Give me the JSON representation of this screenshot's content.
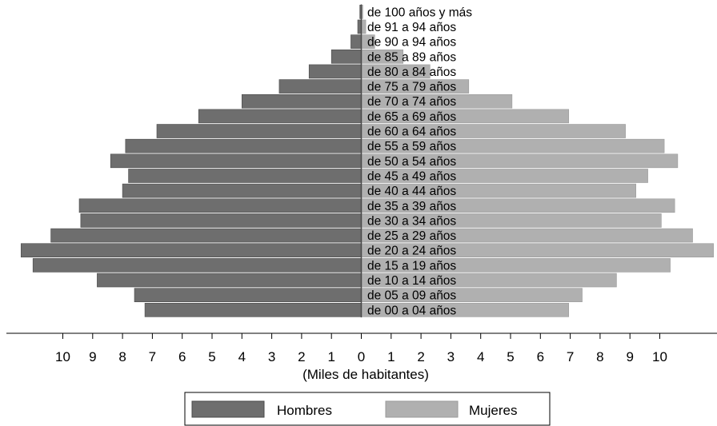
{
  "chart_data": {
    "type": "bar",
    "orientation": "horizontal",
    "subtype": "population-pyramid",
    "xlabel": "(Miles de habitantes)",
    "xlim": [
      -11.5,
      11.5
    ],
    "xticks": [
      -10,
      -9,
      -8,
      -7,
      -6,
      -5,
      -4,
      -3,
      -2,
      -1,
      0,
      1,
      2,
      3,
      4,
      5,
      6,
      7,
      8,
      9,
      10
    ],
    "xtick_labels": [
      "10",
      "9",
      "8",
      "7",
      "6",
      "5",
      "4",
      "3",
      "2",
      "1",
      "0",
      "1",
      "2",
      "3",
      "4",
      "5",
      "6",
      "7",
      "8",
      "9",
      "10"
    ],
    "categories": [
      "de 100 años y más",
      "de 91 a 94 años",
      "de 90 a 94 años",
      "de 85 a 89 años",
      "de 80 a 84 años",
      "de 75 a 79 años",
      "de 70 a 74 años",
      "de 65 a 69 años",
      "de 60 a 64 años",
      "de 55 a 59 años",
      "de 50 a 54 años",
      "de 45 a 49 años",
      "de 40 a 44 años",
      "de 35 a 39 años",
      "de 30 a 34 años",
      "de 25 a 29 años",
      "de 20 a 24 años",
      "de 15 a 19 años",
      "de 10 a 14 años",
      "de 05 a 09 años",
      "de 00 a 04 años"
    ],
    "series": [
      {
        "name": "Hombres",
        "color": "#6e6e6e",
        "values": [
          0.05,
          0.12,
          0.35,
          1.0,
          1.75,
          2.75,
          4.0,
          5.45,
          6.85,
          7.9,
          8.4,
          7.8,
          8.0,
          9.45,
          9.4,
          10.4,
          11.4,
          11.0,
          8.85,
          7.6,
          7.25
        ]
      },
      {
        "name": "Mujeres",
        "color": "#b0b0b0",
        "values": [
          0.05,
          0.15,
          0.45,
          1.4,
          2.3,
          3.6,
          5.05,
          6.95,
          8.85,
          10.15,
          10.6,
          9.6,
          9.2,
          10.5,
          10.05,
          11.1,
          11.8,
          10.35,
          8.55,
          7.4,
          6.95
        ]
      }
    ],
    "legend_position": "bottom",
    "grid": false
  }
}
